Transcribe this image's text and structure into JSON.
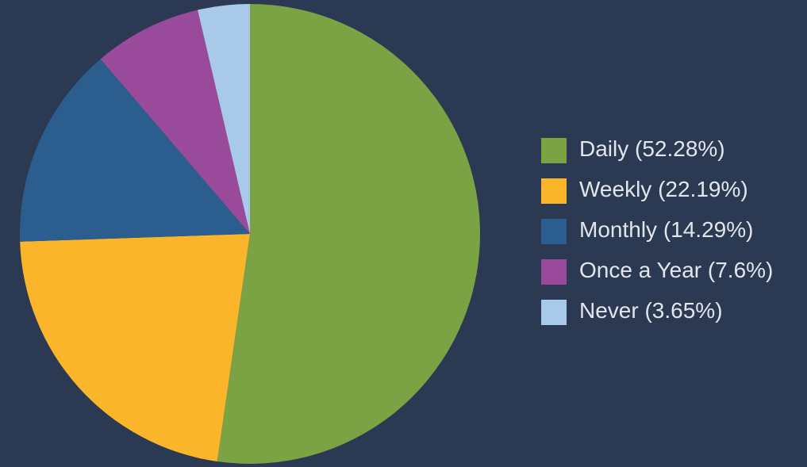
{
  "chart_data": {
    "type": "pie",
    "categories": [
      "Daily",
      "Weekly",
      "Monthly",
      "Once a Year",
      "Never"
    ],
    "values": [
      52.28,
      22.19,
      14.29,
      7.6,
      3.65
    ],
    "value_labels": [
      "(52.28%)",
      "(22.19%)",
      "(14.29%)",
      "(7.6%)",
      "(3.65%)"
    ],
    "colors": [
      "#7ba344",
      "#fbb52b",
      "#2b5e8e",
      "#9a4a9b",
      "#a9c9ea"
    ],
    "legend": "right"
  }
}
